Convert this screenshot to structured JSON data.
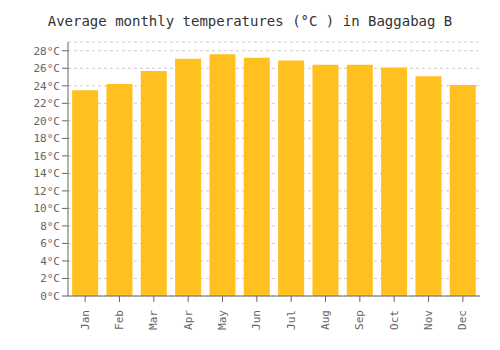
{
  "chart_data": {
    "type": "bar",
    "title": "Average monthly temperatures (°C ) in Baggabag B",
    "categories": [
      "Jan",
      "Feb",
      "Mar",
      "Apr",
      "May",
      "Jun",
      "Jul",
      "Aug",
      "Sep",
      "Oct",
      "Nov",
      "Dec"
    ],
    "values": [
      23.5,
      24.2,
      25.7,
      27.1,
      27.6,
      27.2,
      26.9,
      26.4,
      26.4,
      26.1,
      25.1,
      24.1
    ],
    "color": "#FFC020",
    "ylim": [
      0,
      29
    ],
    "yticks": [
      {
        "value": 0,
        "label": "0°C"
      },
      {
        "value": 2,
        "label": "2°C"
      },
      {
        "value": 4,
        "label": "4°C"
      },
      {
        "value": 6,
        "label": "6°C"
      },
      {
        "value": 8,
        "label": "8°C"
      },
      {
        "value": 10,
        "label": "10°C"
      },
      {
        "value": 12,
        "label": "12°C"
      },
      {
        "value": 14,
        "label": "14°C"
      },
      {
        "value": 16,
        "label": "16°C"
      },
      {
        "value": 18,
        "label": "18°C"
      },
      {
        "value": 20,
        "label": "20°C"
      },
      {
        "value": 22,
        "label": "22°C"
      },
      {
        "value": 24,
        "label": "24°C"
      },
      {
        "value": 26,
        "label": "26°C"
      },
      {
        "value": 28,
        "label": "28°C"
      }
    ],
    "grid": true
  }
}
